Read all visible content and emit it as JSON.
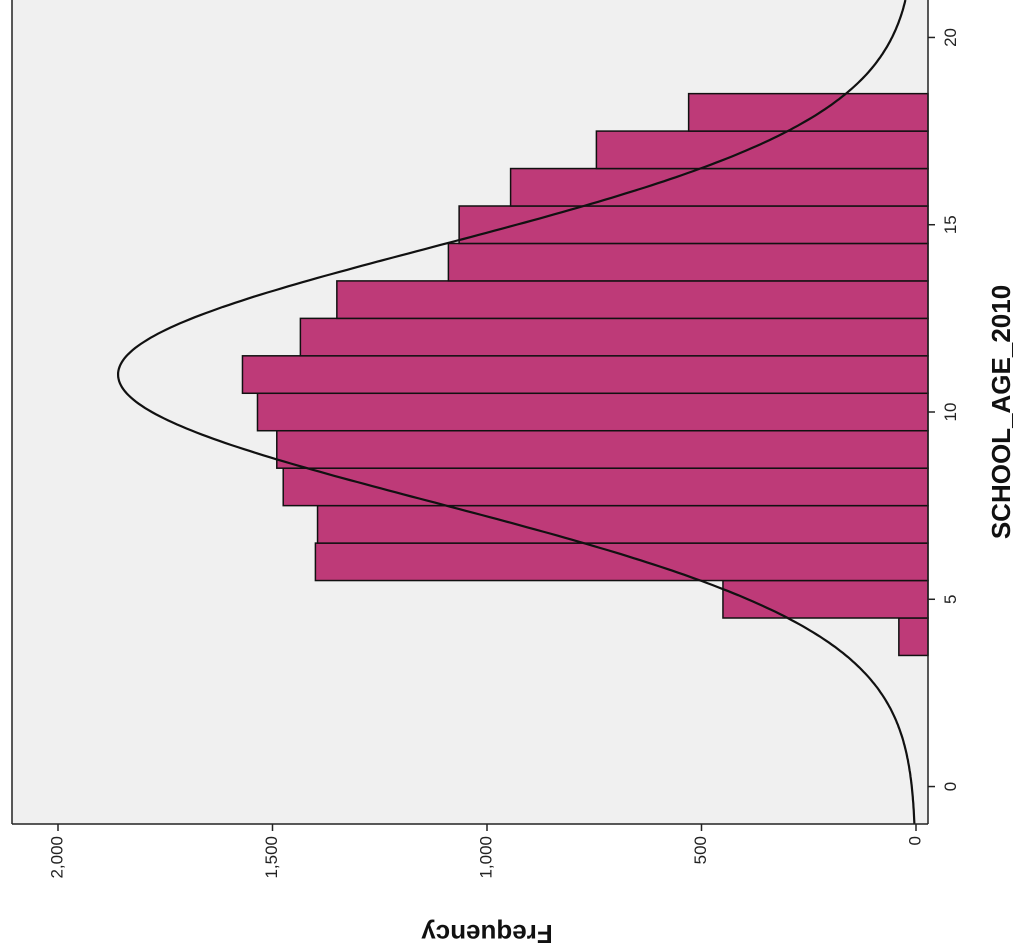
{
  "chart_data": {
    "type": "bar",
    "orientation": "rotated",
    "xlabel": "SCHOOL_AGE_2010",
    "ylabel": "Frequency",
    "xlim": [
      -1,
      21
    ],
    "ylim": [
      0,
      2000
    ],
    "x_ticks": [
      0,
      5,
      10,
      15,
      20
    ],
    "x_tick_labels": [
      "0",
      "5",
      "10",
      "15",
      "20"
    ],
    "y_ticks": [
      0,
      500,
      1000,
      1500,
      2000
    ],
    "y_tick_labels": [
      "0",
      "500",
      "1,000",
      "1,500",
      "2,000"
    ],
    "bins": [
      4,
      5,
      6,
      7,
      8,
      9,
      10,
      11,
      12,
      13,
      14,
      15,
      16,
      17,
      18
    ],
    "values": [
      40,
      450,
      1400,
      1395,
      1475,
      1490,
      1535,
      1570,
      1435,
      1350,
      1090,
      1065,
      945,
      745,
      530
    ],
    "normal_curve": {
      "mean": 11,
      "sd": 3.4,
      "peak": 1860
    },
    "grid": false,
    "colors": {
      "bar": "#be3a78",
      "background": "#f0f0f0",
      "curve": "#111111"
    }
  }
}
